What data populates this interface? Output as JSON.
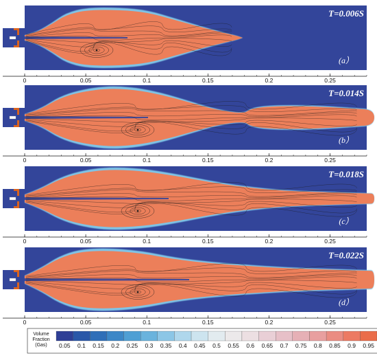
{
  "panels": [
    {
      "time_label": "T=0.006S",
      "tag": "(a）"
    },
    {
      "time_label": "T=0.014S",
      "tag": "(b）"
    },
    {
      "time_label": "T=0.018S",
      "tag": "(c）"
    },
    {
      "time_label": "T=0.022S",
      "tag": "(d）"
    }
  ],
  "x_axis": {
    "ticks": [
      "0",
      "0.05",
      "0.1",
      "0.15",
      "0.2",
      "0.25"
    ],
    "range": [
      0,
      0.28
    ]
  },
  "legend": {
    "title_lines": [
      "Volume",
      "Fraction",
      "(Gas)"
    ],
    "levels": [
      "0.05",
      "0.1",
      "0.15",
      "0.2",
      "0.25",
      "0.3",
      "0.35",
      "0.4",
      "0.45",
      "0.5",
      "0.55",
      "0.6",
      "0.65",
      "0.7",
      "0.75",
      "0.8",
      "0.85",
      "0.9",
      "0.95"
    ],
    "colors": [
      "#2f3f96",
      "#2a57a8",
      "#2f6fb8",
      "#3c87c7",
      "#4f9fd4",
      "#6ab3dd",
      "#8cc6e6",
      "#afd7ec",
      "#cde4ef",
      "#e2ebef",
      "#ece9ea",
      "#ecdfe2",
      "#e9cfd6",
      "#e7c0c8",
      "#e6b0b6",
      "#e89f9f",
      "#ea8c82",
      "#ec7a63",
      "#ea6d4a"
    ]
  },
  "colors": {
    "background": "#33459a",
    "jet": "#ec7f5a",
    "edge": "#7fc4e6",
    "nozzle": "#d9631f"
  }
}
